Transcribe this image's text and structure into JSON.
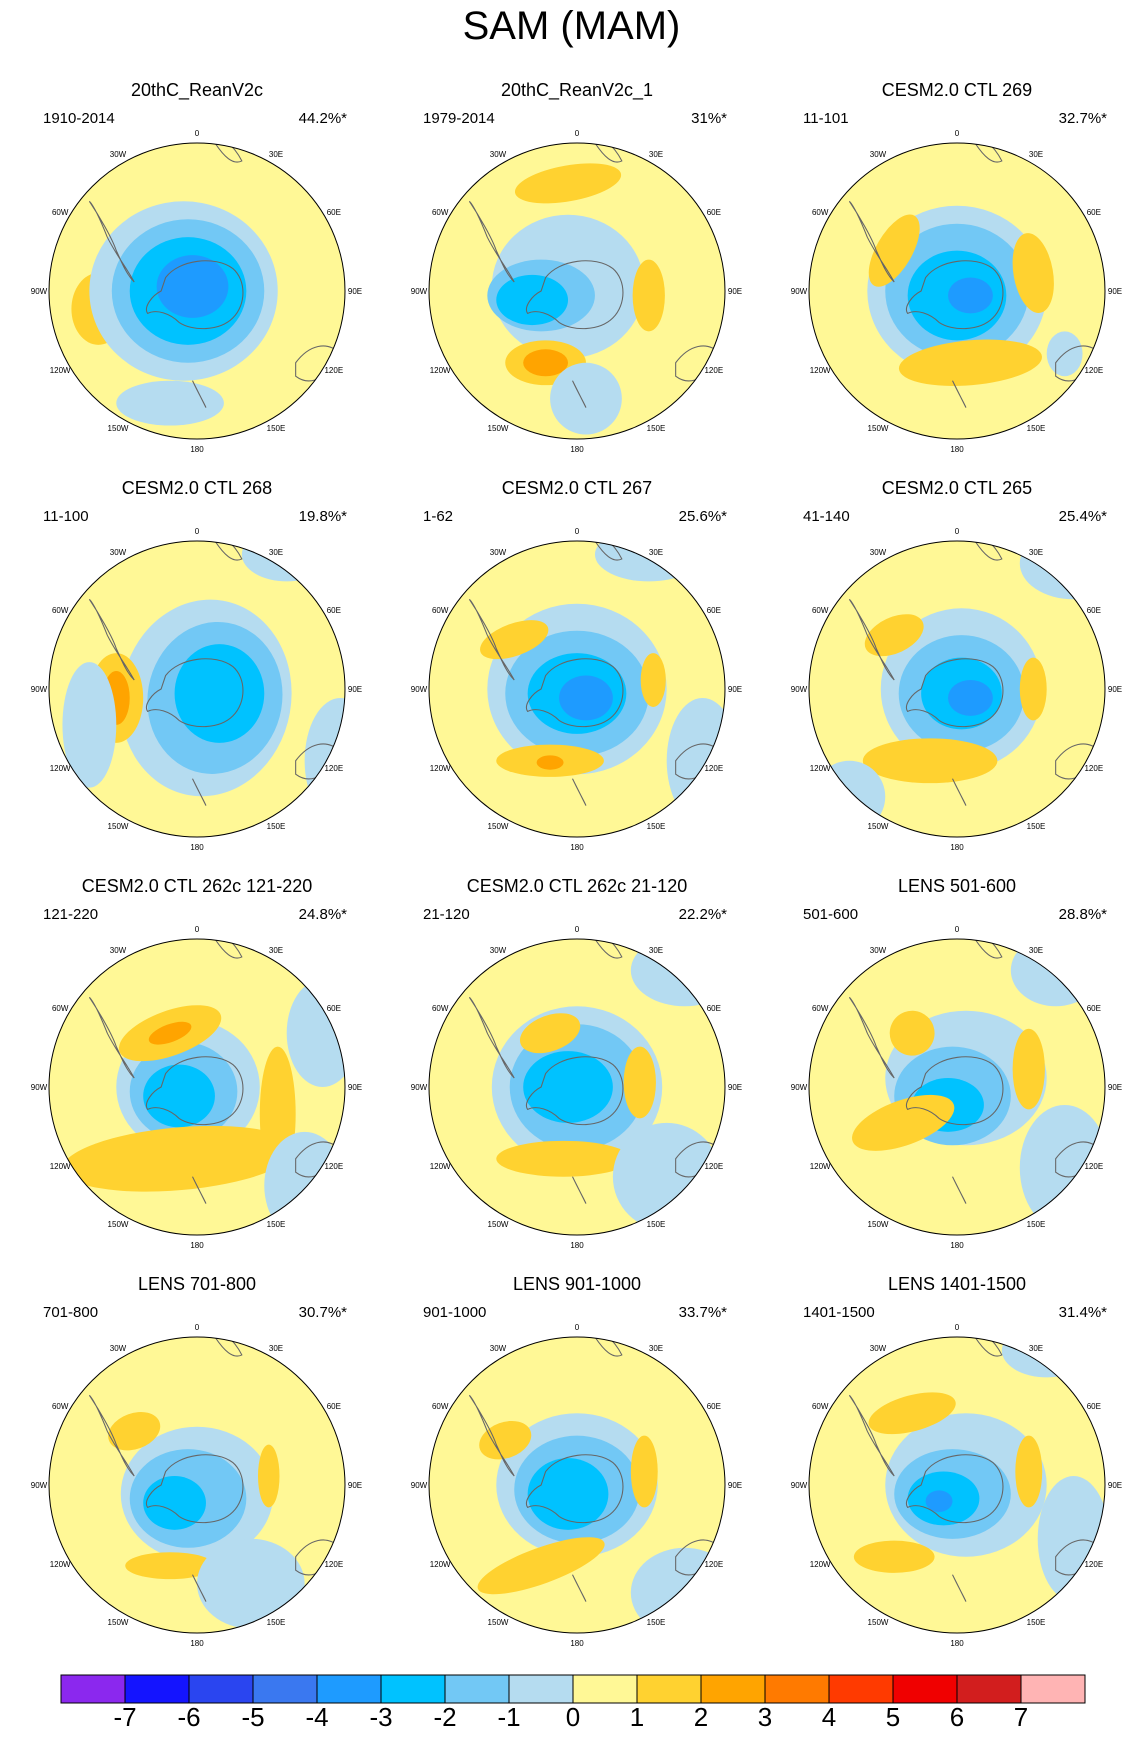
{
  "title": "SAM (MAM)",
  "lon_labels": [
    "0",
    "30E",
    "60E",
    "90E",
    "120E",
    "150E",
    "180",
    "150W",
    "120W",
    "90W",
    "60W",
    "30W"
  ],
  "panels": [
    {
      "title": "20thC_ReanV2c",
      "period": "1910-2014",
      "percent": "44.2%*"
    },
    {
      "title": "20thC_ReanV2c_1",
      "period": "1979-2014",
      "percent": "31%*"
    },
    {
      "title": "CESM2.0 CTL 269",
      "period": "11-101",
      "percent": "32.7%*"
    },
    {
      "title": "CESM2.0 CTL 268",
      "period": "11-100",
      "percent": "19.8%*"
    },
    {
      "title": "CESM2.0 CTL 267",
      "period": "1-62",
      "percent": "25.6%*"
    },
    {
      "title": "CESM2.0 CTL 265",
      "period": "41-140",
      "percent": "25.4%*"
    },
    {
      "title": "CESM2.0 CTL 262c 121-220",
      "period": "121-220",
      "percent": "24.8%*"
    },
    {
      "title": "CESM2.0 CTL 262c 21-120",
      "period": "21-120",
      "percent": "22.2%*"
    },
    {
      "title": "LENS 501-600",
      "period": "501-600",
      "percent": "28.8%*"
    },
    {
      "title": "LENS 701-800",
      "period": "701-800",
      "percent": "30.7%*"
    },
    {
      "title": "LENS 901-1000",
      "period": "901-1000",
      "percent": "33.7%*"
    },
    {
      "title": "LENS 1401-1500",
      "period": "1401-1500",
      "percent": "31.4%*"
    }
  ],
  "colorbar": {
    "labels": [
      "-7",
      "-6",
      "-5",
      "-4",
      "-3",
      "-2",
      "-1",
      "0",
      "1",
      "2",
      "3",
      "4",
      "5",
      "6",
      "7"
    ],
    "colors": [
      "#8b28ee",
      "#1414ff",
      "#2a45f0",
      "#3a78f0",
      "#1e9bff",
      "#00c2ff",
      "#72c8f5",
      "#b5dcf0",
      "#fff896",
      "#ffd230",
      "#ffa400",
      "#ff7a00",
      "#ff3a00",
      "#f00000",
      "#d21e1e",
      "#ffb4b4"
    ]
  }
}
